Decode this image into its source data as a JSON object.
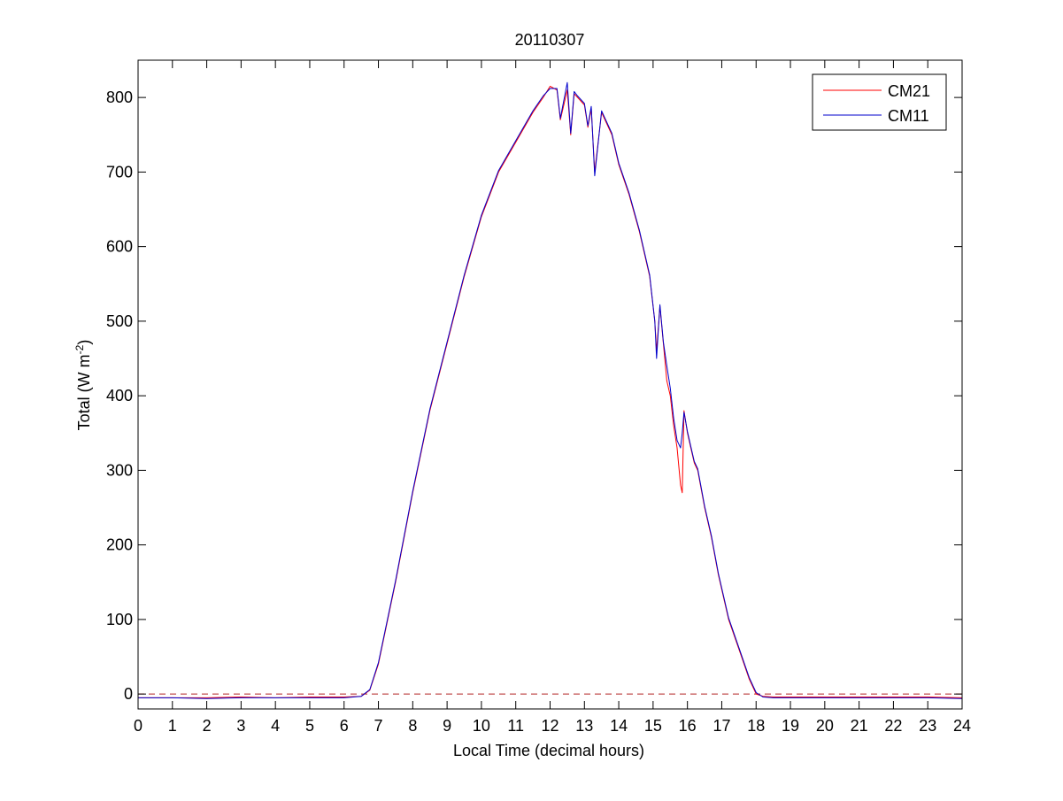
{
  "chart_data": {
    "type": "line",
    "title": "20110307",
    "xlabel": "Local Time (decimal hours)",
    "ylabel": "Total (W m-2)",
    "ylabel_parts": {
      "main": "Total (W m",
      "sup": "-2",
      "close": ")"
    },
    "xlim": [
      0,
      24
    ],
    "ylim": [
      -20,
      850
    ],
    "xticks": [
      0,
      1,
      2,
      3,
      4,
      5,
      6,
      7,
      8,
      9,
      10,
      11,
      12,
      13,
      14,
      15,
      16,
      17,
      18,
      19,
      20,
      21,
      22,
      23,
      24
    ],
    "yticks": [
      0,
      100,
      200,
      300,
      400,
      500,
      600,
      700,
      800
    ],
    "grid": false,
    "legend_position": "top-right",
    "reference_line": {
      "y": 0,
      "style": "dashed",
      "color": "#b22222"
    },
    "series": [
      {
        "name": "CM21",
        "color": "#ff0000",
        "x": [
          0,
          1,
          2,
          3,
          4,
          5,
          6,
          6.5,
          6.75,
          7,
          7.5,
          8,
          8.5,
          9,
          9.5,
          10,
          10.5,
          11,
          11.5,
          11.8,
          12,
          12.2,
          12.3,
          12.5,
          12.6,
          12.7,
          12.8,
          13,
          13.1,
          13.2,
          13.3,
          13.5,
          13.8,
          14,
          14.3,
          14.6,
          14.9,
          15.05,
          15.1,
          15.2,
          15.3,
          15.4,
          15.5,
          15.6,
          15.7,
          15.8,
          15.85,
          15.9,
          16,
          16.1,
          16.2,
          16.3,
          16.5,
          16.7,
          16.9,
          17.2,
          17.5,
          17.8,
          18,
          18.2,
          18.5,
          19,
          20,
          21,
          22,
          23,
          24
        ],
        "y": [
          -5,
          -5,
          -5,
          -4,
          -5,
          -4,
          -4,
          -3,
          5,
          40,
          150,
          270,
          380,
          470,
          560,
          640,
          700,
          740,
          780,
          800,
          815,
          810,
          770,
          810,
          750,
          805,
          800,
          790,
          760,
          785,
          700,
          780,
          750,
          710,
          670,
          620,
          560,
          500,
          460,
          520,
          470,
          420,
          400,
          360,
          330,
          280,
          270,
          380,
          350,
          330,
          310,
          300,
          250,
          210,
          160,
          100,
          60,
          20,
          0,
          -3,
          -4,
          -4,
          -4,
          -4,
          -4,
          -4,
          -5
        ]
      },
      {
        "name": "CM11",
        "color": "#0000cc",
        "x": [
          0,
          1,
          2,
          3,
          4,
          5,
          6,
          6.5,
          6.75,
          7,
          7.5,
          8,
          8.5,
          9,
          9.5,
          10,
          10.5,
          11,
          11.5,
          11.8,
          12,
          12.2,
          12.3,
          12.5,
          12.6,
          12.7,
          12.8,
          13,
          13.1,
          13.2,
          13.3,
          13.5,
          13.8,
          14,
          14.3,
          14.6,
          14.9,
          15.05,
          15.1,
          15.2,
          15.3,
          15.4,
          15.5,
          15.6,
          15.7,
          15.8,
          15.85,
          15.9,
          16,
          16.1,
          16.2,
          16.3,
          16.5,
          16.7,
          16.9,
          17.2,
          17.5,
          17.8,
          18,
          18.2,
          18.5,
          19,
          20,
          21,
          22,
          23,
          24
        ],
        "y": [
          -5,
          -5,
          -6,
          -5,
          -5,
          -5,
          -5,
          -3,
          6,
          42,
          152,
          272,
          382,
          472,
          562,
          642,
          702,
          742,
          782,
          802,
          812,
          812,
          772,
          820,
          752,
          808,
          802,
          792,
          762,
          788,
          695,
          782,
          752,
          712,
          672,
          622,
          562,
          500,
          450,
          522,
          472,
          440,
          410,
          370,
          340,
          330,
          350,
          378,
          352,
          332,
          312,
          302,
          252,
          212,
          162,
          102,
          62,
          22,
          2,
          -4,
          -5,
          -5,
          -5,
          -5,
          -5,
          -5,
          -6
        ]
      }
    ]
  }
}
